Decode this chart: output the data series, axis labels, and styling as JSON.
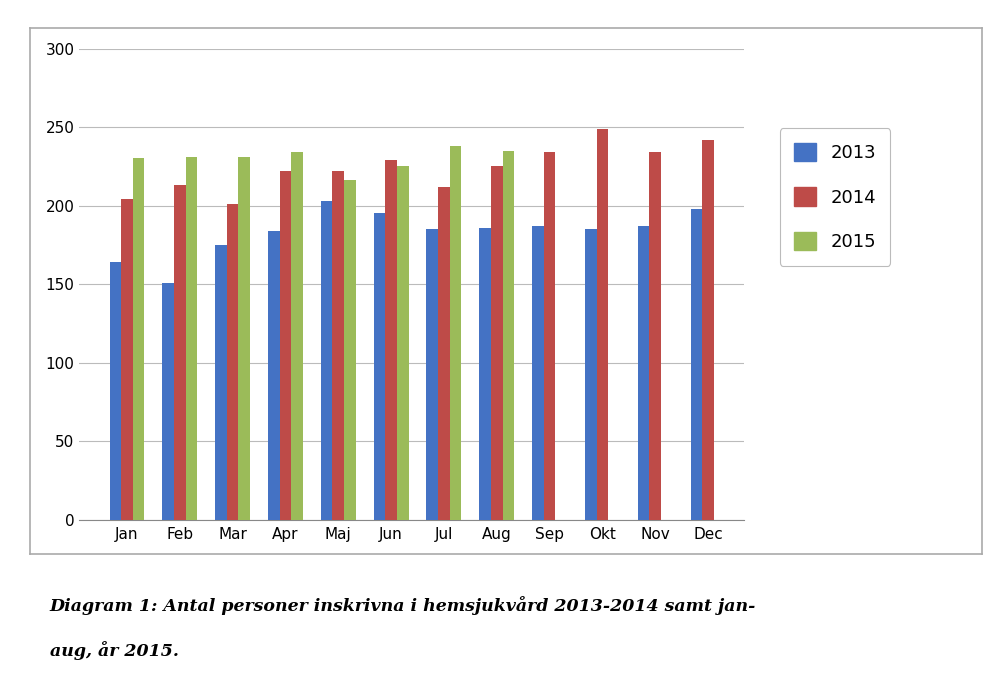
{
  "months": [
    "Jan",
    "Feb",
    "Mar",
    "Apr",
    "Maj",
    "Jun",
    "Jul",
    "Aug",
    "Sep",
    "Okt",
    "Nov",
    "Dec"
  ],
  "series": {
    "2013": [
      164,
      151,
      175,
      184,
      203,
      195,
      185,
      186,
      187,
      185,
      187,
      198
    ],
    "2014": [
      204,
      213,
      201,
      222,
      222,
      229,
      212,
      225,
      234,
      249,
      234,
      242
    ],
    "2015": [
      230,
      231,
      231,
      234,
      216,
      225,
      238,
      235,
      null,
      null,
      null,
      null
    ]
  },
  "bar_colors": {
    "2013": "#4472C4",
    "2014": "#BE4B48",
    "2015": "#9BBB59"
  },
  "ylim": [
    0,
    300
  ],
  "yticks": [
    0,
    50,
    100,
    150,
    200,
    250,
    300
  ],
  "legend_labels": [
    "2013",
    "2014",
    "2015"
  ],
  "caption_line1": "Diagram 1: Antal personer inskrivna i hemsjukvård 2013-2014 samt jan-",
  "caption_line2": "aug, år 2015.",
  "background_color": "#FFFFFF",
  "plot_bg_color": "#FFFFFF",
  "grid_color": "#BBBBBB",
  "bar_width": 0.22,
  "figsize": [
    9.92,
    6.93
  ],
  "dpi": 100
}
